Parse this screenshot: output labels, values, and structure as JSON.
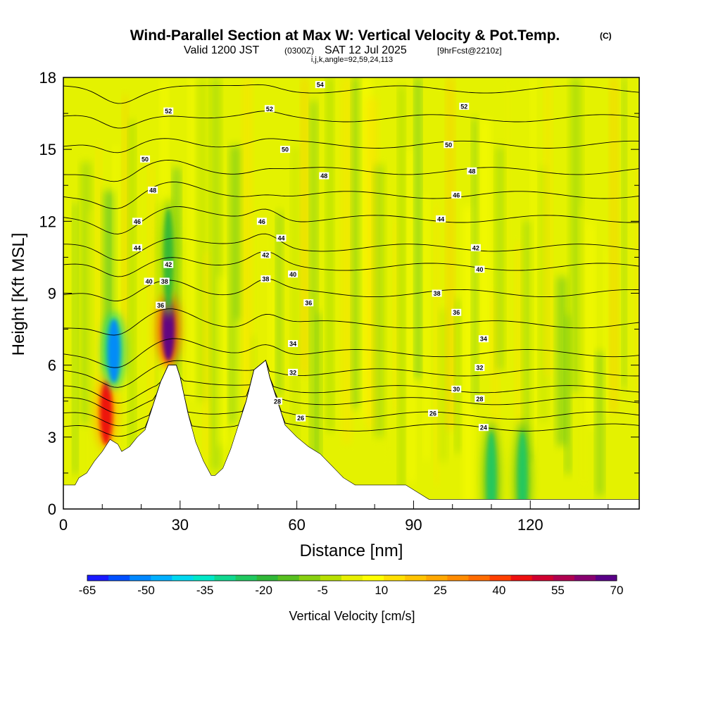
{
  "title": {
    "main": "Wind-Parallel Section at Max W: Vertical Velocity & Pot.Temp.",
    "main_unit": "(C)",
    "valid_prefix": "Valid 1200 JST",
    "valid_utc": "(0300Z)",
    "valid_date": "SAT 12 Jul 2025",
    "forecast": "[9hrFcst@2210z]",
    "params": "i,j,k,angle=92,59,24,113"
  },
  "chart_data": {
    "type": "heatmap",
    "xlabel": "Distance [nm]",
    "ylabel": "Height [Kft MSL]",
    "xlim": [
      0,
      148
    ],
    "ylim": [
      0,
      18
    ],
    "xticks": [
      0,
      30,
      60,
      90,
      120
    ],
    "yticks": [
      0,
      3,
      6,
      9,
      12,
      15,
      18
    ],
    "colorbar": {
      "label": "Vertical Velocity [cm/s]",
      "ticks": [
        -65,
        -50,
        -35,
        -20,
        -5,
        10,
        25,
        40,
        55,
        70
      ],
      "range": [
        -65,
        70
      ],
      "colors": [
        "#1a1aff",
        "#0050ff",
        "#0088ff",
        "#00b0ff",
        "#00d8f0",
        "#00e8c8",
        "#10d890",
        "#20c860",
        "#30b838",
        "#58c020",
        "#88d010",
        "#b8e000",
        "#e8f000",
        "#ffff00",
        "#ffe000",
        "#ffc400",
        "#ffa800",
        "#ff8c00",
        "#ff6c00",
        "#ff4000",
        "#ee1010",
        "#d00030",
        "#b00050",
        "#880070",
        "#5a0088"
      ]
    },
    "terrain": [
      {
        "x": 0,
        "z": 1.0
      },
      {
        "x": 3,
        "z": 1.0
      },
      {
        "x": 4,
        "z": 1.3
      },
      {
        "x": 6,
        "z": 1.5
      },
      {
        "x": 8,
        "z": 2.0
      },
      {
        "x": 10,
        "z": 2.4
      },
      {
        "x": 12,
        "z": 2.9
      },
      {
        "x": 14,
        "z": 2.7
      },
      {
        "x": 15,
        "z": 2.4
      },
      {
        "x": 17,
        "z": 2.6
      },
      {
        "x": 19,
        "z": 3.0
      },
      {
        "x": 21,
        "z": 3.3
      },
      {
        "x": 23,
        "z": 4.3
      },
      {
        "x": 25,
        "z": 5.3
      },
      {
        "x": 27,
        "z": 6.0
      },
      {
        "x": 29,
        "z": 6.0
      },
      {
        "x": 30,
        "z": 5.5
      },
      {
        "x": 32,
        "z": 4.0
      },
      {
        "x": 34,
        "z": 2.8
      },
      {
        "x": 36,
        "z": 2.0
      },
      {
        "x": 38,
        "z": 1.4
      },
      {
        "x": 39,
        "z": 1.4
      },
      {
        "x": 41,
        "z": 1.7
      },
      {
        "x": 43,
        "z": 2.5
      },
      {
        "x": 45,
        "z": 3.5
      },
      {
        "x": 47,
        "z": 4.5
      },
      {
        "x": 49,
        "z": 5.8
      },
      {
        "x": 52,
        "z": 6.2
      },
      {
        "x": 53,
        "z": 5.5
      },
      {
        "x": 55,
        "z": 4.5
      },
      {
        "x": 57,
        "z": 3.5
      },
      {
        "x": 60,
        "z": 3.0
      },
      {
        "x": 63,
        "z": 2.6
      },
      {
        "x": 66,
        "z": 2.3
      },
      {
        "x": 69,
        "z": 1.8
      },
      {
        "x": 72,
        "z": 1.3
      },
      {
        "x": 75,
        "z": 1.0
      },
      {
        "x": 88,
        "z": 1.0
      },
      {
        "x": 94,
        "z": 0.4
      },
      {
        "x": 148,
        "z": 0.4
      }
    ],
    "theta_contours": [
      {
        "value": 24,
        "base": 3.4
      },
      {
        "value": 26,
        "base": 3.9
      },
      {
        "value": 28,
        "base": 4.5
      },
      {
        "value": 30,
        "base": 5.0
      },
      {
        "value": 32,
        "base": 5.7
      },
      {
        "value": 34,
        "base": 6.5
      },
      {
        "value": 36,
        "base": 7.7
      },
      {
        "value": 38,
        "base": 9.0
      },
      {
        "value": 40,
        "base": 10.1
      },
      {
        "value": 42,
        "base": 10.9
      },
      {
        "value": 44,
        "base": 12.1
      },
      {
        "value": 46,
        "base": 13.1
      },
      {
        "value": 48,
        "base": 14.1
      },
      {
        "value": 50,
        "base": 15.2
      },
      {
        "value": 52,
        "base": 16.3
      },
      {
        "value": 54,
        "base": 17.5
      }
    ],
    "contour_labels": [
      {
        "text": "52",
        "x": 27,
        "z": 16.6
      },
      {
        "text": "50",
        "x": 21,
        "z": 14.6
      },
      {
        "text": "48",
        "x": 23,
        "z": 13.3
      },
      {
        "text": "46",
        "x": 19,
        "z": 12.0
      },
      {
        "text": "44",
        "x": 19,
        "z": 10.9
      },
      {
        "text": "40",
        "x": 22,
        "z": 9.5
      },
      {
        "text": "38",
        "x": 26,
        "z": 9.5
      },
      {
        "text": "42",
        "x": 27,
        "z": 10.2
      },
      {
        "text": "36",
        "x": 25,
        "z": 8.5
      },
      {
        "text": "52",
        "x": 53,
        "z": 16.7
      },
      {
        "text": "50",
        "x": 57,
        "z": 15.0
      },
      {
        "text": "48",
        "x": 67,
        "z": 13.9
      },
      {
        "text": "46",
        "x": 51,
        "z": 12.0
      },
      {
        "text": "44",
        "x": 56,
        "z": 11.3
      },
      {
        "text": "42",
        "x": 52,
        "z": 10.6
      },
      {
        "text": "40",
        "x": 59,
        "z": 9.8
      },
      {
        "text": "38",
        "x": 52,
        "z": 9.6
      },
      {
        "text": "36",
        "x": 63,
        "z": 8.6
      },
      {
        "text": "34",
        "x": 59,
        "z": 6.9
      },
      {
        "text": "32",
        "x": 59,
        "z": 5.7
      },
      {
        "text": "28",
        "x": 55,
        "z": 4.5
      },
      {
        "text": "26",
        "x": 61,
        "z": 3.8
      },
      {
        "text": "54",
        "x": 66,
        "z": 17.7
      },
      {
        "text": "52",
        "x": 103,
        "z": 16.8
      },
      {
        "text": "50",
        "x": 99,
        "z": 15.2
      },
      {
        "text": "48",
        "x": 105,
        "z": 14.1
      },
      {
        "text": "46",
        "x": 101,
        "z": 13.1
      },
      {
        "text": "44",
        "x": 97,
        "z": 12.1
      },
      {
        "text": "42",
        "x": 106,
        "z": 10.9
      },
      {
        "text": "40",
        "x": 107,
        "z": 10.0
      },
      {
        "text": "38",
        "x": 96,
        "z": 9.0
      },
      {
        "text": "36",
        "x": 101,
        "z": 8.2
      },
      {
        "text": "34",
        "x": 108,
        "z": 7.1
      },
      {
        "text": "32",
        "x": 107,
        "z": 5.9
      },
      {
        "text": "30",
        "x": 101,
        "z": 5.0
      },
      {
        "text": "28",
        "x": 107,
        "z": 4.6
      },
      {
        "text": "26",
        "x": 95,
        "z": 4.0
      },
      {
        "text": "24",
        "x": 108,
        "z": 3.4
      }
    ],
    "features": [
      {
        "kind": "updraft",
        "x": 27,
        "z": 7.5,
        "value": 70
      },
      {
        "kind": "updraft",
        "x": 11,
        "z": 4.0,
        "value": 45
      },
      {
        "kind": "downdraft",
        "x": 13,
        "z": 6.6,
        "value": -50
      },
      {
        "kind": "downdraft",
        "x": 27,
        "z": 10.5,
        "value": -20
      },
      {
        "kind": "downdraft",
        "x": 110,
        "z": 1.2,
        "value": -22
      },
      {
        "kind": "downdraft",
        "x": 118,
        "z": 1.2,
        "value": -22
      }
    ]
  }
}
